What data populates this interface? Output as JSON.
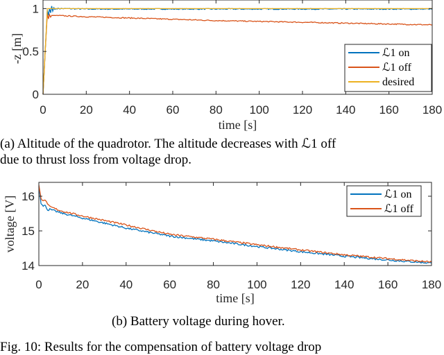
{
  "colors": {
    "l1_on": "#0072BD",
    "l1_off": "#D95319",
    "desired": "#EDB120",
    "axis": "#262626"
  },
  "chart_data": [
    {
      "type": "line",
      "title": "",
      "xlabel": "time [s]",
      "ylabel": "-z [m]",
      "xlim": [
        0,
        180
      ],
      "ylim": [
        0,
        1.1
      ],
      "xticks": [
        "0",
        "20",
        "40",
        "60",
        "80",
        "100",
        "120",
        "140",
        "160",
        "180"
      ],
      "yticks": [
        "0",
        "0.5",
        "1"
      ],
      "grid": false,
      "legend_position": "bottom-right",
      "series": [
        {
          "name": "ℒ1 on",
          "x": [
            0,
            1,
            2,
            2.5,
            3,
            3.5,
            4,
            4.5,
            5,
            5.5,
            6,
            8,
            20,
            40,
            60,
            80,
            100,
            120,
            140,
            160,
            180
          ],
          "y": [
            0,
            0.5,
            0.98,
            0.92,
            1.0,
            0.95,
            1.03,
            0.97,
            1.01,
            0.99,
            1.0,
            1.0,
            0.995,
            0.995,
            0.995,
            0.995,
            0.995,
            0.995,
            0.995,
            0.995,
            0.995
          ]
        },
        {
          "name": "ℒ1 off",
          "x": [
            0,
            1,
            2,
            2.5,
            3,
            3.5,
            4,
            5,
            10,
            20,
            40,
            60,
            80,
            100,
            120,
            140,
            160,
            180
          ],
          "y": [
            0,
            0.5,
            0.94,
            0.88,
            0.93,
            0.9,
            0.92,
            0.92,
            0.915,
            0.905,
            0.89,
            0.875,
            0.86,
            0.85,
            0.84,
            0.83,
            0.82,
            0.81
          ]
        },
        {
          "name": "desired",
          "x": [
            0,
            2,
            180
          ],
          "y": [
            0,
            1,
            1
          ]
        }
      ]
    },
    {
      "type": "line",
      "title": "",
      "xlabel": "time [s]",
      "ylabel": "voltage [V]",
      "xlim": [
        0,
        180
      ],
      "ylim": [
        14,
        16.4
      ],
      "xticks": [
        "0",
        "20",
        "40",
        "60",
        "80",
        "100",
        "120",
        "140",
        "160",
        "180"
      ],
      "yticks": [
        "14",
        "15",
        "16"
      ],
      "grid": false,
      "legend_position": "top-right",
      "series": [
        {
          "name": "ℒ1 on",
          "x": [
            0,
            1,
            2,
            3,
            4,
            5,
            10,
            20,
            40,
            60,
            80,
            100,
            120,
            140,
            160,
            180
          ],
          "y": [
            16.3,
            15.8,
            15.7,
            15.75,
            15.6,
            15.62,
            15.52,
            15.37,
            15.08,
            14.85,
            14.71,
            14.55,
            14.4,
            14.27,
            14.16,
            14.07
          ]
        },
        {
          "name": "ℒ1 off",
          "x": [
            0,
            1,
            2,
            3,
            4,
            5,
            10,
            20,
            40,
            60,
            80,
            100,
            120,
            140,
            160,
            180
          ],
          "y": [
            16.35,
            15.95,
            15.85,
            15.9,
            15.75,
            15.7,
            15.58,
            15.43,
            15.17,
            14.9,
            14.76,
            14.6,
            14.45,
            14.31,
            14.2,
            14.1
          ]
        }
      ]
    }
  ],
  "captions": {
    "a_line1": "(a) Altitude of the quadrotor. The altitude decreases with ℒ1 off",
    "a_line2": "due to thrust loss from voltage drop.",
    "b": "(b) Battery voltage during hover.",
    "fig": "Fig. 10: Results for the compensation of battery voltage drop"
  }
}
